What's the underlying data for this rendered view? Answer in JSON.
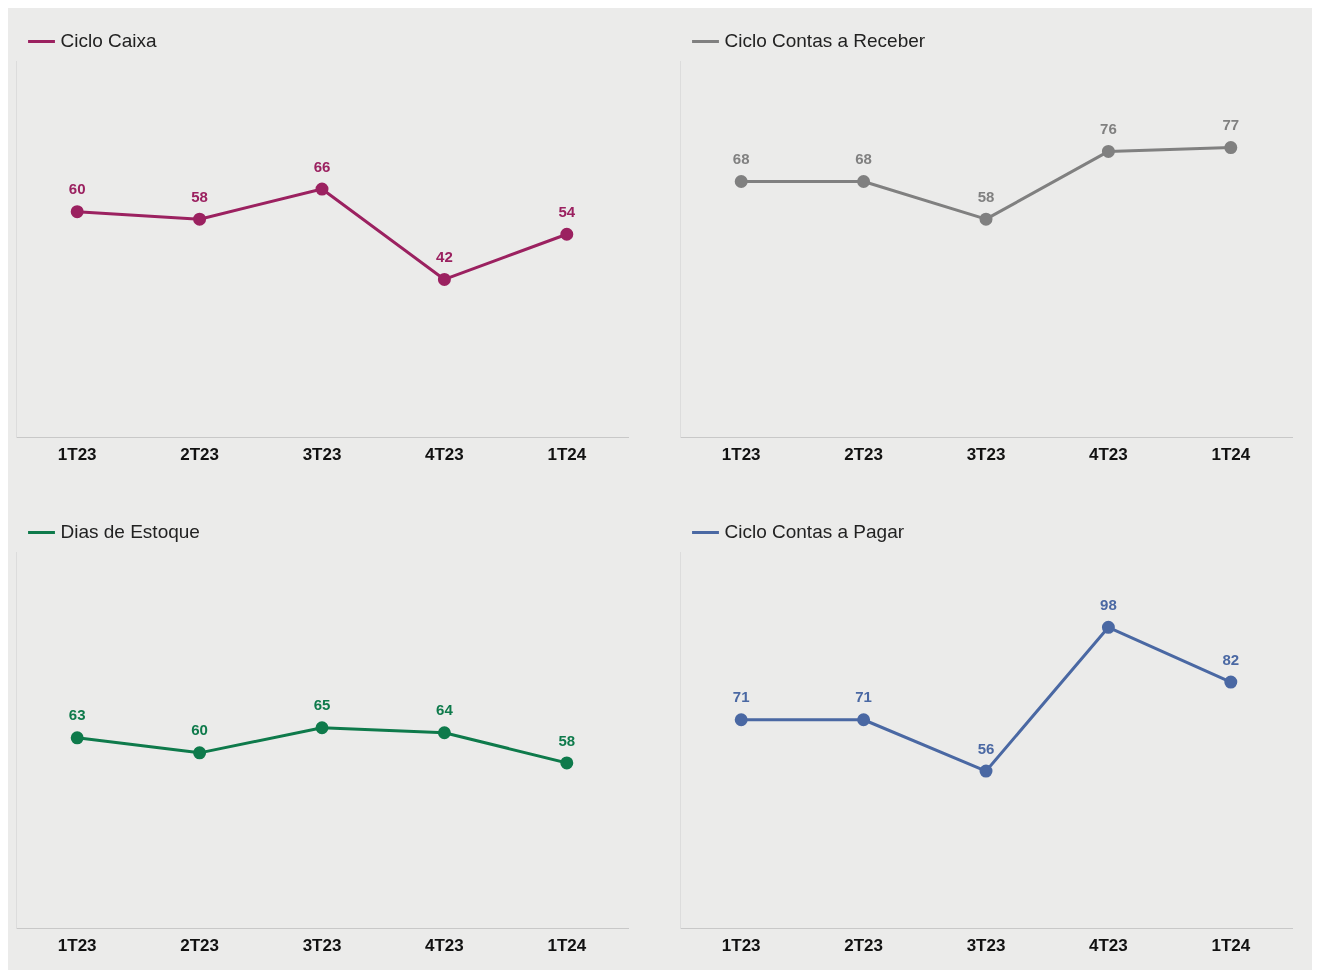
{
  "chart_data": [
    {
      "type": "line",
      "categories": [
        "1T23",
        "2T23",
        "3T23",
        "4T23",
        "1T24"
      ],
      "series": [
        {
          "name": "Ciclo Caixa",
          "color": "#9b2160",
          "values": [
            60,
            58,
            66,
            42,
            54
          ]
        }
      ],
      "ylim": [
        0,
        100
      ],
      "tick_labels": "x",
      "data_labels": true,
      "legend": "top left",
      "marker": "circle"
    },
    {
      "type": "line",
      "categories": [
        "1T23",
        "2T23",
        "3T23",
        "4T23",
        "1T24"
      ],
      "series": [
        {
          "name": "Ciclo Contas a Receber",
          "color": "#808080",
          "values": [
            68,
            68,
            58,
            76,
            77
          ]
        }
      ],
      "ylim": [
        0,
        100
      ],
      "tick_labels": "x",
      "data_labels": true,
      "legend": "top left",
      "marker": "circle"
    },
    {
      "type": "line",
      "categories": [
        "1T23",
        "2T23",
        "3T23",
        "4T23",
        "1T24"
      ],
      "series": [
        {
          "name": "Dias de Estoque",
          "color": "#0e7a4b",
          "values": [
            63,
            60,
            65,
            64,
            58
          ]
        }
      ],
      "ylim": [
        25,
        100
      ],
      "tick_labels": "x",
      "data_labels": true,
      "legend": "top left",
      "marker": "circle"
    },
    {
      "type": "line",
      "categories": [
        "1T23",
        "2T23",
        "3T23",
        "4T23",
        "1T24"
      ],
      "series": [
        {
          "name": "Ciclo Contas a Pagar",
          "color": "#4a68a3",
          "values": [
            71,
            71,
            56,
            98,
            82
          ]
        }
      ],
      "ylim": [
        10,
        120
      ],
      "tick_labels": "x",
      "data_labels": true,
      "legend": "top left",
      "marker": "circle"
    }
  ]
}
